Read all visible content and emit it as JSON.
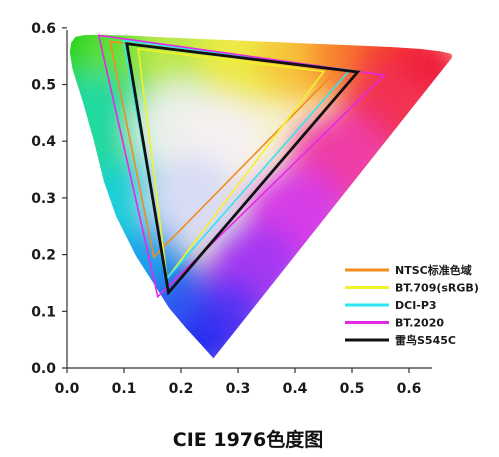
{
  "chart_data": {
    "type": "line",
    "title": "CIE 1976色度图",
    "xlabel": "",
    "ylabel": "",
    "xlim": [
      0,
      0.63
    ],
    "ylim": [
      0,
      0.61
    ],
    "x_ticks": [
      "0.0",
      "0.1",
      "0.2",
      "0.3",
      "0.4",
      "0.5",
      "0.6"
    ],
    "y_ticks": [
      "0.0",
      "0.1",
      "0.2",
      "0.3",
      "0.4",
      "0.5",
      "0.6"
    ],
    "grid": false,
    "legend_position": "lower-right",
    "locus": {
      "u": [
        0.2568,
        0.2374,
        0.2093,
        0.1787,
        0.1516,
        0.1207,
        0.0862,
        0.0647,
        0.0469,
        0.0276,
        0.0098,
        0.0049,
        0.0073,
        0.0145,
        0.0315,
        0.0575,
        0.1066,
        0.1615,
        0.2231,
        0.2906,
        0.3613,
        0.4331,
        0.5034,
        0.5677,
        0.6212,
        0.6537,
        0.6683,
        0.6741,
        0.6755,
        0.6749
      ],
      "v": [
        0.0169,
        0.0389,
        0.0699,
        0.1061,
        0.1498,
        0.1983,
        0.2678,
        0.3291,
        0.402,
        0.4705,
        0.527,
        0.5568,
        0.5737,
        0.584,
        0.5873,
        0.5874,
        0.5864,
        0.5836,
        0.5808,
        0.5779,
        0.575,
        0.572,
        0.569,
        0.5662,
        0.5626,
        0.5586,
        0.5555,
        0.5539,
        0.5505,
        0.5467
      ]
    },
    "series": [
      {
        "name": "NTSC标准色域",
        "color": "#f28c1e",
        "u": [
          0.4769,
          0.0757,
          0.1522
        ],
        "v": [
          0.5285,
          0.5757,
          0.1957
        ]
      },
      {
        "name": "BT.709(sRGB)",
        "color": "#f2f22a",
        "u": [
          0.4507,
          0.125,
          0.1754
        ],
        "v": [
          0.5229,
          0.5625,
          0.1579
        ]
      },
      {
        "name": "DCI-P3",
        "color": "#2ee4f2",
        "u": [
          0.4964,
          0.0991,
          0.1754
        ],
        "v": [
          0.5256,
          0.5776,
          0.1579
        ]
      },
      {
        "name": "BT.2020",
        "color": "#e628e6",
        "u": [
          0.5566,
          0.0556,
          0.1593
        ],
        "v": [
          0.5165,
          0.5868,
          0.1258
        ]
      },
      {
        "name": "雷鸟S545C",
        "color": "#111111",
        "u": [
          0.51,
          0.105,
          0.178
        ],
        "v": [
          0.522,
          0.572,
          0.133
        ]
      }
    ]
  }
}
